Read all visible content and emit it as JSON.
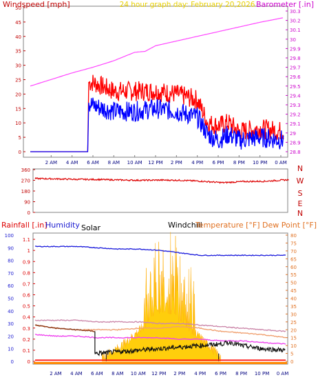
{
  "chart_data": [
    {
      "type": "line",
      "title": "24 hour graph day:  February 20,2026",
      "left_axis_label": "Windspeed [mph]",
      "right_axis_label": "Barometer [.in]",
      "x_ticks": [
        "2 AM",
        "4 AM",
        "6 AM",
        "8 AM",
        "10 AM",
        "12 PM",
        "2 PM",
        "4 PM",
        "6 PM",
        "8 PM",
        "10 PM",
        "0 AM"
      ],
      "x_range_hours": [
        0,
        24.5
      ],
      "left_ylim": [
        0,
        50
      ],
      "left_ticks": [
        "0",
        "5",
        "10",
        "15",
        "20",
        "25",
        "30",
        "35",
        "40",
        "45",
        "50"
      ],
      "right_ylim": [
        28.75,
        30.35
      ],
      "right_ticks": [
        "28.8",
        "28.9",
        "29",
        "29.1",
        "29.2",
        "29.3",
        "29.4",
        "29.5",
        "29.6",
        "29.7",
        "29.8",
        "29.9",
        "30",
        "30.1",
        "30.2",
        "30.3"
      ],
      "series": [
        {
          "color": "#ff44ff",
          "axis": "right",
          "x": [
            0,
            2,
            4,
            6,
            8,
            10,
            11,
            12,
            14,
            16,
            18,
            20,
            22,
            24.3
          ],
          "values": [
            29.5,
            29.57,
            29.64,
            29.7,
            29.77,
            29.86,
            29.87,
            29.93,
            29.98,
            30.03,
            30.08,
            30.13,
            30.18,
            30.23
          ]
        },
        {
          "color": "#ff0000",
          "axis": "left",
          "x": [
            0,
            5.5,
            5.6,
            6,
            8,
            10,
            12,
            14,
            16,
            17,
            18,
            19,
            20,
            22,
            24.3
          ],
          "values": [
            0,
            0,
            24,
            24,
            21,
            21,
            21,
            20,
            18,
            10,
            9,
            10,
            7,
            8,
            7
          ]
        },
        {
          "color": "#0000ff",
          "axis": "left",
          "x": [
            0,
            5.5,
            5.6,
            6,
            8,
            10,
            12,
            14,
            16,
            17,
            18,
            19,
            20,
            22,
            24.3
          ],
          "values": [
            0,
            0,
            17,
            16,
            14,
            14,
            15,
            14,
            12,
            6,
            4,
            6,
            4,
            5,
            4
          ]
        }
      ]
    },
    {
      "type": "line",
      "left_ticks": [
        "0",
        "90",
        "180",
        "270",
        "360"
      ],
      "ylim": [
        0,
        360
      ],
      "direction_labels": [
        "N",
        "W",
        "S",
        "E",
        "N"
      ],
      "x_range_hours": [
        0,
        24.5
      ],
      "series": [
        {
          "color": "#dd0000",
          "x": [
            0,
            2,
            4,
            6,
            8,
            10,
            12,
            14,
            16,
            18,
            20,
            22,
            24.3
          ],
          "values": [
            285,
            282,
            278,
            277,
            273,
            270,
            272,
            270,
            262,
            250,
            260,
            262,
            275
          ]
        }
      ]
    },
    {
      "type": "area",
      "left_axis_label": "Rainfall [.in]",
      "humidity_label": "Humidity",
      "solar_label": "Solar",
      "windchill_label": "Windchill",
      "right_axis_label": "Temperature [°F] Dew Point [°F]",
      "x_ticks": [
        "2 AM",
        "4 AM",
        "6 AM",
        "8 AM",
        "10 AM",
        "12 PM",
        "2 PM",
        "4 PM",
        "6 PM",
        "8 PM",
        "10 PM",
        "0 AM"
      ],
      "x_range_hours": [
        0,
        24.5
      ],
      "humidity_ticks": [
        "0",
        "10",
        "20",
        "30",
        "40",
        "50",
        "60",
        "70",
        "80",
        "90",
        "100"
      ],
      "rain_ticks": [
        "0",
        "0.1",
        "0.2",
        "0.3",
        "0.4",
        "0.5",
        "0.6",
        "0.7",
        "0.8",
        "0.9",
        "1",
        "1.1"
      ],
      "temp_ticks": [
        "0",
        "5",
        "10",
        "15",
        "20",
        "25",
        "30",
        "35",
        "40",
        "45",
        "50",
        "55",
        "60",
        "65",
        "70",
        "75",
        "80"
      ],
      "humidity_ylim": [
        0,
        100
      ],
      "rain_ylim": [
        0,
        1.2
      ],
      "temp_ylim": [
        0,
        80
      ],
      "series": [
        {
          "name": "Humidity",
          "color": "#2222dd",
          "axis": "humidity",
          "x": [
            0,
            2,
            4,
            6,
            8,
            10,
            12,
            14,
            16,
            18,
            20,
            22,
            24.3
          ],
          "values": [
            91,
            91,
            91,
            90,
            89,
            89,
            88,
            86,
            84,
            84,
            84,
            84,
            84
          ]
        },
        {
          "color": "#cc88aa",
          "axis": "temp",
          "x": [
            0,
            2,
            4,
            6,
            8,
            10,
            12,
            14,
            16,
            18,
            20,
            22,
            24.3
          ],
          "values": [
            26,
            26,
            26,
            25,
            25,
            25,
            24,
            24,
            23,
            22,
            21,
            20,
            19
          ]
        },
        {
          "name": "Temperature",
          "color": "#f0a070",
          "axis": "temp",
          "x": [
            0,
            2,
            4,
            6,
            8,
            10,
            12,
            14,
            16,
            18,
            20,
            22,
            24.3
          ],
          "values": [
            23,
            21,
            20,
            20,
            20,
            21,
            21,
            22,
            21,
            19,
            18,
            17,
            15
          ]
        },
        {
          "name": "Dew Point",
          "color": "#ee44ee",
          "axis": "temp",
          "x": [
            0,
            2,
            4,
            6,
            8,
            10,
            12,
            14,
            16,
            18,
            20,
            22,
            24.3
          ],
          "values": [
            17,
            16,
            16,
            15,
            15,
            15,
            15,
            14,
            14,
            13,
            13,
            12,
            11
          ]
        },
        {
          "color": "#8b3a1a",
          "axis": "temp",
          "x": [
            0,
            2,
            4,
            5.8
          ],
          "values": [
            23,
            21,
            20,
            19
          ]
        },
        {
          "name": "Windchill",
          "color": "#111111",
          "axis": "temp",
          "x": [
            5.8,
            6,
            8,
            10,
            12,
            14,
            16,
            18,
            19,
            20,
            22,
            24.3
          ],
          "values": [
            5,
            5,
            6,
            7,
            8,
            9,
            10,
            11,
            12,
            10,
            8,
            7
          ]
        },
        {
          "name": "Rainfall",
          "color": "#ff2222",
          "axis": "rain",
          "x": [
            0,
            24.3
          ],
          "values": [
            0.01,
            0.01
          ]
        },
        {
          "name": "Solar",
          "color": "#ffcc00",
          "axis": "solar",
          "x": [
            6.5,
            8,
            9,
            10,
            11,
            12,
            13,
            14,
            15,
            16,
            17,
            18
          ],
          "values": [
            0,
            5,
            10,
            16,
            22,
            30,
            30,
            24,
            18,
            12,
            6,
            0
          ]
        }
      ]
    }
  ]
}
